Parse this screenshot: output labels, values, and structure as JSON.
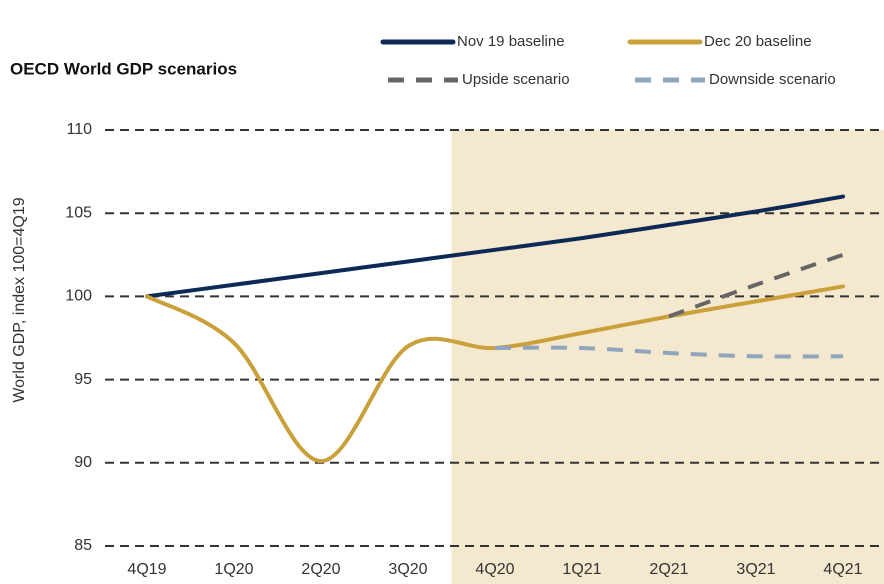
{
  "chart_data": {
    "type": "line",
    "title": "OECD World GDP scenarios",
    "ylabel": "World GDP, index 100=4Q19",
    "categories": [
      "4Q19",
      "1Q20",
      "2Q20",
      "3Q20",
      "4Q20",
      "1Q21",
      "2Q21",
      "3Q21",
      "4Q21"
    ],
    "series": [
      {
        "name": "Nov 19 baseline",
        "color": "#0d2a57",
        "dash": false,
        "values": [
          100,
          100.7,
          101.4,
          102.1,
          102.8,
          103.5,
          104.3,
          105.1,
          106.0
        ]
      },
      {
        "name": "Dec 20 baseline",
        "color": "#c9a03a",
        "dash": false,
        "values": [
          100,
          97.2,
          90.1,
          97.0,
          96.9,
          97.8,
          98.8,
          99.7,
          100.6
        ]
      },
      {
        "name": "Upside scenario",
        "color": "#666666",
        "dash": true,
        "values": [
          null,
          null,
          null,
          null,
          null,
          null,
          98.8,
          100.7,
          102.5
        ]
      },
      {
        "name": "Downside scenario",
        "color": "#8fa5bd",
        "dash": true,
        "values": [
          null,
          null,
          null,
          null,
          96.9,
          96.9,
          96.6,
          96.4,
          96.4
        ]
      }
    ],
    "ylim": [
      85,
      110
    ],
    "yticks": [
      85,
      90,
      95,
      100,
      105,
      110
    ],
    "grid": true
  }
}
